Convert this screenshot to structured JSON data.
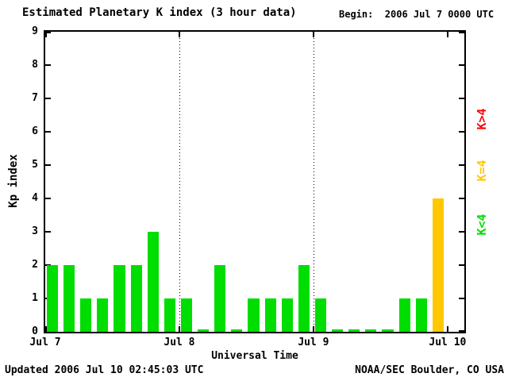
{
  "title": "Estimated Planetary K index (3 hour data)",
  "begin_label": "Begin:  2006 Jul 7 0000 UTC",
  "footer": {
    "updated": "Updated 2006 Jul 10 02:45:03 UTC",
    "source": "NOAA/SEC Boulder, CO USA"
  },
  "chart_data": {
    "type": "bar",
    "title": "Estimated Planetary K index (3 hour data)",
    "xlabel": "Universal Time",
    "ylabel": "Kp index",
    "ylim": [
      0,
      9
    ],
    "yticks": [
      0,
      1,
      2,
      3,
      4,
      5,
      6,
      7,
      8,
      9
    ],
    "x_slot_count": 25,
    "xticks": [
      {
        "slot": 0,
        "label": "Jul 7"
      },
      {
        "slot": 8,
        "label": "Jul 8",
        "gridline": true
      },
      {
        "slot": 16,
        "label": "Jul 9",
        "gridline": true
      },
      {
        "slot": 24,
        "label": "Jul 10"
      }
    ],
    "values": [
      2,
      2,
      1,
      1,
      2,
      2,
      3,
      1,
      1,
      0,
      2,
      0,
      1,
      1,
      1,
      2,
      1,
      0,
      0,
      0,
      0,
      1,
      1,
      4
    ],
    "thresholds": {
      "mid": 4
    },
    "colors": {
      "low": "#00dd00",
      "mid": "#ffc800",
      "high": "#ff0000"
    },
    "legend": [
      {
        "label": "K>4",
        "color": "#ff0000"
      },
      {
        "label": "K=4",
        "color": "#ffc800"
      },
      {
        "label": "K<4",
        "color": "#00dd00"
      }
    ],
    "grid": "vertical dotted at day boundaries",
    "legend_position": "right, rotated"
  }
}
